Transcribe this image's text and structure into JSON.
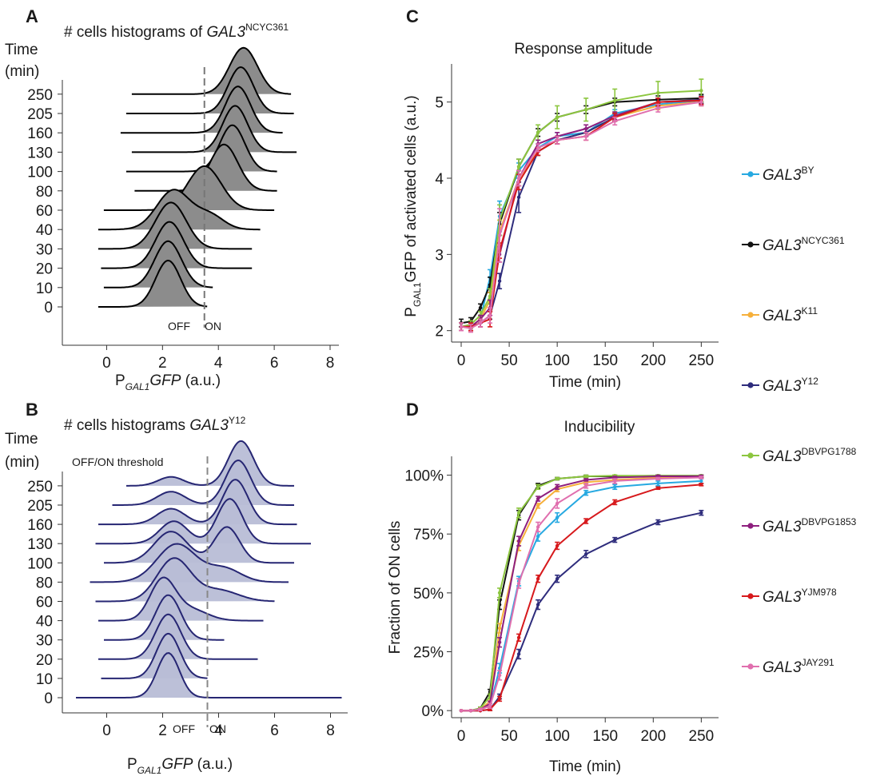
{
  "panels": {
    "A": {
      "letter": "A",
      "title_prefix": "# cells histograms of ",
      "title_gene": "GAL3",
      "title_sup": "NCYC361",
      "ylabel_1": "Time",
      "ylabel_2": "(min)",
      "xlabel_main": "P",
      "xlabel_sub": "GAL1",
      "xlabel_rest": "GFP",
      "xlabel_unit": " (a.u.)",
      "off_label": "OFF",
      "on_label": "ON"
    },
    "B": {
      "letter": "B",
      "title_prefix": "# cells histograms ",
      "title_gene": "GAL3",
      "title_sup": "Y12",
      "ylabel_1": "Time",
      "ylabel_2": "(min)",
      "threshold_label": "OFF/ON threshold",
      "xlabel_main": "P",
      "xlabel_sub": "GAL1",
      "xlabel_rest": "GFP",
      "xlabel_unit": " (a.u.)",
      "off_label": "OFF",
      "on_label": "ON"
    },
    "C": {
      "letter": "C",
      "title": "Response amplitude",
      "ylabel_main": "P",
      "ylabel_sub": "GAL1",
      "ylabel_rest": "GFP of activated cells (a.u.)",
      "xlabel": "Time (min)"
    },
    "D": {
      "letter": "D",
      "title": "Inducibility",
      "ylabel": "Fraction of ON cells",
      "xlabel": "Time (min)"
    }
  },
  "legend": [
    {
      "gene": "GAL3",
      "sup": "BY",
      "color": "#27a9e1"
    },
    {
      "gene": "GAL3",
      "sup": "NCYC361",
      "color": "#111111"
    },
    {
      "gene": "GAL3",
      "sup": "K11",
      "color": "#f6b03b"
    },
    {
      "gene": "GAL3",
      "sup": "Y12",
      "color": "#2e2c7c"
    },
    {
      "gene": "GAL3",
      "sup": "DBVPG1788",
      "color": "#8cc63f"
    },
    {
      "gene": "GAL3",
      "sup": "DBVPG1853",
      "color": "#8e1f7e"
    },
    {
      "gene": "GAL3",
      "sup": "YJM978",
      "color": "#d7191c"
    },
    {
      "gene": "GAL3",
      "sup": "JAY291",
      "color": "#e06fae"
    }
  ],
  "chart_data": [
    {
      "id": "A",
      "type": "ridgeline",
      "fill": "#8c8c8c",
      "xticks": [
        0,
        2,
        4,
        6,
        8
      ],
      "xlim": [
        -1.3,
        8.2
      ],
      "threshold": 3.5,
      "times": [
        0,
        10,
        20,
        30,
        40,
        60,
        80,
        100,
        130,
        160,
        205,
        250
      ],
      "distributions": [
        {
          "time": 0,
          "range": [
            -0.3,
            3.6
          ],
          "modes": [
            {
              "mu": 2.2,
              "sd": 0.45,
              "h": 1.0
            }
          ]
        },
        {
          "time": 10,
          "range": [
            -0.1,
            3.8
          ],
          "modes": [
            {
              "mu": 2.2,
              "sd": 0.48,
              "h": 1.0
            }
          ]
        },
        {
          "time": 20,
          "range": [
            -0.2,
            5.2
          ],
          "modes": [
            {
              "mu": 2.25,
              "sd": 0.5,
              "h": 1.0
            }
          ]
        },
        {
          "time": 30,
          "range": [
            -0.3,
            5.2
          ],
          "modes": [
            {
              "mu": 2.3,
              "sd": 0.55,
              "h": 1.0
            }
          ]
        },
        {
          "time": 40,
          "range": [
            -0.3,
            5.5
          ],
          "modes": [
            {
              "mu": 2.4,
              "sd": 0.6,
              "h": 0.85
            },
            {
              "mu": 3.7,
              "sd": 0.5,
              "h": 0.3
            }
          ]
        },
        {
          "time": 60,
          "range": [
            -0.1,
            6.0
          ],
          "modes": [
            {
              "mu": 3.5,
              "sd": 0.6,
              "h": 0.95
            }
          ]
        },
        {
          "time": 80,
          "range": [
            1.0,
            6.1
          ],
          "modes": [
            {
              "mu": 4.2,
              "sd": 0.5,
              "h": 1.0
            }
          ]
        },
        {
          "time": 100,
          "range": [
            0.7,
            6.1
          ],
          "modes": [
            {
              "mu": 4.5,
              "sd": 0.45,
              "h": 1.0
            }
          ]
        },
        {
          "time": 130,
          "range": [
            0.9,
            6.8
          ],
          "modes": [
            {
              "mu": 4.6,
              "sd": 0.45,
              "h": 1.0
            }
          ]
        },
        {
          "time": 160,
          "range": [
            0.5,
            6.3
          ],
          "modes": [
            {
              "mu": 4.7,
              "sd": 0.45,
              "h": 1.0
            }
          ]
        },
        {
          "time": 205,
          "range": [
            0.7,
            6.7
          ],
          "modes": [
            {
              "mu": 4.8,
              "sd": 0.45,
              "h": 1.0
            }
          ]
        },
        {
          "time": 250,
          "range": [
            0.9,
            6.6
          ],
          "modes": [
            {
              "mu": 4.9,
              "sd": 0.5,
              "h": 1.0
            }
          ]
        }
      ]
    },
    {
      "id": "B",
      "type": "ridgeline",
      "fill": "#b8bdd6",
      "stroke": "#262673",
      "xticks": [
        0,
        2,
        4,
        6,
        8
      ],
      "xlim": [
        -1.3,
        8.5
      ],
      "threshold": 3.6,
      "times": [
        0,
        10,
        20,
        30,
        40,
        60,
        80,
        100,
        130,
        160,
        205,
        250
      ],
      "distributions": [
        {
          "time": 0,
          "range": [
            -1.1,
            8.4
          ],
          "modes": [
            {
              "mu": 2.2,
              "sd": 0.4,
              "h": 1.0
            }
          ]
        },
        {
          "time": 10,
          "range": [
            -0.2,
            3.6
          ],
          "modes": [
            {
              "mu": 2.2,
              "sd": 0.42,
              "h": 1.0
            }
          ]
        },
        {
          "time": 20,
          "range": [
            -0.3,
            5.4
          ],
          "modes": [
            {
              "mu": 2.2,
              "sd": 0.45,
              "h": 1.0
            }
          ]
        },
        {
          "time": 30,
          "range": [
            -0.1,
            4.2
          ],
          "modes": [
            {
              "mu": 2.2,
              "sd": 0.45,
              "h": 1.0
            }
          ]
        },
        {
          "time": 40,
          "range": [
            -0.3,
            5.6
          ],
          "modes": [
            {
              "mu": 2.0,
              "sd": 0.45,
              "h": 0.9
            },
            {
              "mu": 3.0,
              "sd": 0.6,
              "h": 0.25
            }
          ]
        },
        {
          "time": 60,
          "range": [
            -0.4,
            6.0
          ],
          "modes": [
            {
              "mu": 2.4,
              "sd": 0.6,
              "h": 0.95
            },
            {
              "mu": 4.0,
              "sd": 0.7,
              "h": 0.25
            }
          ]
        },
        {
          "time": 80,
          "range": [
            -0.6,
            6.5
          ],
          "modes": [
            {
              "mu": 2.5,
              "sd": 0.7,
              "h": 0.85
            },
            {
              "mu": 4.2,
              "sd": 0.6,
              "h": 0.3
            }
          ]
        },
        {
          "time": 100,
          "range": [
            -0.1,
            6.7
          ],
          "modes": [
            {
              "mu": 2.3,
              "sd": 0.6,
              "h": 0.7
            },
            {
              "mu": 4.3,
              "sd": 0.45,
              "h": 0.8
            }
          ]
        },
        {
          "time": 130,
          "range": [
            -0.4,
            7.3
          ],
          "modes": [
            {
              "mu": 2.4,
              "sd": 0.5,
              "h": 0.5
            },
            {
              "mu": 4.4,
              "sd": 0.45,
              "h": 1.0
            }
          ]
        },
        {
          "time": 160,
          "range": [
            -0.3,
            6.8
          ],
          "modes": [
            {
              "mu": 2.3,
              "sd": 0.5,
              "h": 0.35
            },
            {
              "mu": 4.6,
              "sd": 0.45,
              "h": 1.0
            }
          ]
        },
        {
          "time": 205,
          "range": [
            0.2,
            6.7
          ],
          "modes": [
            {
              "mu": 2.3,
              "sd": 0.5,
              "h": 0.3
            },
            {
              "mu": 4.7,
              "sd": 0.45,
              "h": 1.0
            }
          ]
        },
        {
          "time": 250,
          "range": [
            0.7,
            6.7
          ],
          "modes": [
            {
              "mu": 2.3,
              "sd": 0.45,
              "h": 0.2
            },
            {
              "mu": 4.8,
              "sd": 0.45,
              "h": 1.0
            }
          ]
        }
      ]
    },
    {
      "id": "C",
      "type": "line",
      "title": "Response amplitude",
      "xlabel": "Time (min)",
      "ylabel": "PGAL1 GFP of activated cells (a.u.)",
      "x": [
        0,
        10,
        20,
        30,
        40,
        60,
        80,
        100,
        130,
        160,
        205,
        250
      ],
      "xticks": [
        0,
        50,
        100,
        150,
        200,
        250
      ],
      "xlim": [
        -10,
        268
      ],
      "yticks": [
        2,
        3,
        4,
        5
      ],
      "ylim": [
        1.85,
        5.5
      ],
      "series": [
        {
          "name": "GAL3BY",
          "color": "#27a9e1",
          "values": [
            2.05,
            2.05,
            2.15,
            2.7,
            3.5,
            4.1,
            4.4,
            4.55,
            4.6,
            4.85,
            4.97,
            5.02
          ],
          "err": [
            0.05,
            0.05,
            0.05,
            0.1,
            0.2,
            0.1,
            0.05,
            0.05,
            0.05,
            0.05,
            0.05,
            0.05
          ]
        },
        {
          "name": "GAL3NCYC361",
          "color": "#111111",
          "values": [
            2.1,
            2.12,
            2.3,
            2.6,
            3.4,
            4.15,
            4.6,
            4.8,
            4.9,
            5.0,
            5.03,
            5.05
          ],
          "err": [
            0.05,
            0.05,
            0.05,
            0.1,
            0.15,
            0.1,
            0.05,
            0.05,
            0.05,
            0.05,
            0.05,
            0.05
          ]
        },
        {
          "name": "GAL3K11",
          "color": "#f6b03b",
          "values": [
            2.05,
            2.05,
            2.15,
            2.4,
            3.3,
            4.0,
            4.35,
            4.5,
            4.6,
            4.8,
            4.95,
            5.0
          ],
          "err": [
            0.05,
            0.05,
            0.05,
            0.1,
            0.15,
            0.1,
            0.05,
            0.05,
            0.05,
            0.05,
            0.05,
            0.05
          ]
        },
        {
          "name": "GAL3Y12",
          "color": "#2e2c7c",
          "values": [
            2.05,
            2.05,
            2.1,
            2.2,
            2.65,
            3.75,
            4.35,
            4.5,
            4.6,
            4.8,
            5.0,
            5.03
          ],
          "err": [
            0.05,
            0.05,
            0.05,
            0.05,
            0.1,
            0.2,
            0.05,
            0.05,
            0.05,
            0.05,
            0.05,
            0.05
          ]
        },
        {
          "name": "GAL3DBVPG1788",
          "color": "#8cc63f",
          "values": [
            2.05,
            2.08,
            2.2,
            2.45,
            3.45,
            4.15,
            4.6,
            4.8,
            4.9,
            5.02,
            5.12,
            5.15
          ],
          "err": [
            0.05,
            0.05,
            0.05,
            0.1,
            0.2,
            0.1,
            0.1,
            0.15,
            0.15,
            0.15,
            0.15,
            0.15
          ]
        },
        {
          "name": "GAL3DBVPG1853",
          "color": "#8e1f7e",
          "values": [
            2.05,
            2.05,
            2.15,
            2.3,
            3.0,
            4.0,
            4.45,
            4.55,
            4.65,
            4.82,
            5.0,
            5.02
          ],
          "err": [
            0.05,
            0.05,
            0.05,
            0.1,
            0.1,
            0.1,
            0.05,
            0.05,
            0.05,
            0.05,
            0.05,
            0.05
          ]
        },
        {
          "name": "GAL3YJM978",
          "color": "#d7191c",
          "values": [
            2.05,
            2.05,
            2.1,
            2.15,
            3.05,
            3.95,
            4.35,
            4.5,
            4.55,
            4.8,
            5.0,
            5.02
          ],
          "err": [
            0.05,
            0.05,
            0.05,
            0.1,
            0.1,
            0.1,
            0.05,
            0.05,
            0.05,
            0.05,
            0.05,
            0.05
          ]
        },
        {
          "name": "GAL3JAY291",
          "color": "#e06fae",
          "values": [
            2.05,
            2.03,
            2.1,
            2.2,
            3.25,
            4.0,
            4.4,
            4.5,
            4.55,
            4.75,
            4.92,
            5.0
          ],
          "err": [
            0.05,
            0.05,
            0.05,
            0.1,
            0.35,
            0.1,
            0.05,
            0.05,
            0.05,
            0.05,
            0.05,
            0.05
          ]
        }
      ]
    },
    {
      "id": "D",
      "type": "line",
      "title": "Inducibility",
      "xlabel": "Time (min)",
      "ylabel": "Fraction of ON cells",
      "x": [
        0,
        10,
        20,
        30,
        40,
        60,
        80,
        100,
        130,
        160,
        205,
        250
      ],
      "xticks": [
        0,
        50,
        100,
        150,
        200,
        250
      ],
      "xlim": [
        -10,
        268
      ],
      "yticks": [
        0,
        25,
        50,
        75,
        100
      ],
      "ytick_labels": [
        "0%",
        "25%",
        "50%",
        "75%",
        "100%"
      ],
      "ylim": [
        -3,
        108
      ],
      "series": [
        {
          "name": "GAL3BY",
          "color": "#27a9e1",
          "values": [
            0,
            0,
            0.5,
            2,
            18,
            55,
            74,
            82,
            92.5,
            95,
            96.5,
            97.5
          ],
          "err": [
            0,
            0,
            0.5,
            1,
            2,
            2,
            2,
            2,
            1,
            1,
            1,
            1
          ]
        },
        {
          "name": "GAL3NCYC361",
          "color": "#111111",
          "values": [
            0,
            0,
            1,
            8,
            45,
            83,
            95.5,
            98.5,
            99.5,
            99.5,
            99.8,
            99.8
          ],
          "err": [
            0,
            0,
            0.5,
            1,
            2,
            2,
            1,
            0.5,
            0.5,
            0.5,
            0.3,
            0.3
          ]
        },
        {
          "name": "GAL3K11",
          "color": "#f6b03b",
          "values": [
            0,
            0,
            0.5,
            4,
            35,
            70,
            87,
            94,
            97,
            98,
            99,
            99.5
          ],
          "err": [
            0,
            0,
            0.5,
            1,
            2,
            2,
            1,
            1,
            1,
            0.5,
            0.5,
            0.5
          ]
        },
        {
          "name": "GAL3Y12",
          "color": "#2e2c7c",
          "values": [
            0,
            0,
            0,
            0.5,
            6,
            24,
            45,
            56,
            66.5,
            72.5,
            80,
            84
          ],
          "err": [
            0,
            0,
            0,
            0.5,
            1,
            2,
            2,
            1.5,
            1.5,
            1,
            1,
            1
          ]
        },
        {
          "name": "GAL3DBVPG1788",
          "color": "#8cc63f",
          "values": [
            0,
            0,
            1,
            6,
            50,
            84,
            95,
            98.5,
            99.5,
            99.8,
            99.8,
            99.8
          ],
          "err": [
            0,
            0,
            0.5,
            1,
            2,
            2,
            1,
            0.5,
            0.5,
            0.3,
            0.3,
            0.3
          ]
        },
        {
          "name": "GAL3DBVPG1853",
          "color": "#8e1f7e",
          "values": [
            0,
            0,
            0.5,
            3,
            29,
            72,
            90,
            95,
            98,
            99,
            99.5,
            99.5
          ],
          "err": [
            0,
            0,
            0.5,
            1,
            2,
            2,
            1,
            1,
            0.5,
            0.5,
            0.5,
            0.5
          ]
        },
        {
          "name": "GAL3YJM978",
          "color": "#d7191c",
          "values": [
            0,
            0,
            0,
            0.5,
            5,
            31,
            56,
            70,
            80.5,
            88.5,
            94.5,
            96
          ],
          "err": [
            0,
            0,
            0,
            0.5,
            1,
            1.5,
            1.5,
            1.5,
            1,
            1,
            0.5,
            0.5
          ]
        },
        {
          "name": "GAL3JAY291",
          "color": "#e06fae",
          "values": [
            0,
            0,
            0.5,
            2,
            15,
            54,
            78,
            88,
            95.5,
            97.5,
            98.5,
            99
          ],
          "err": [
            0,
            0,
            0.5,
            1,
            2,
            2,
            2,
            2,
            1,
            1,
            0.5,
            0.5
          ]
        }
      ]
    }
  ]
}
